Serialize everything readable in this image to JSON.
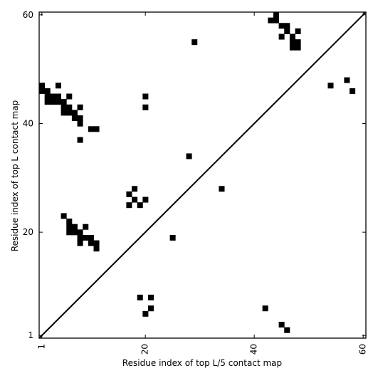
{
  "chart_data": {
    "type": "scatter",
    "title": "",
    "xlabel": "Residue index of top L/5 contact map",
    "ylabel": "Residue index of top L contact map",
    "xlim": [
      0.5,
      60.5
    ],
    "ylim": [
      0.5,
      60.5
    ],
    "x_ticks": [
      {
        "value": 1,
        "label": "1"
      },
      {
        "value": 20,
        "label": "20"
      },
      {
        "value": 40,
        "label": "40"
      },
      {
        "value": 60,
        "label": "60"
      }
    ],
    "y_ticks": [
      {
        "value": 1,
        "label": "1"
      },
      {
        "value": 20,
        "label": "20"
      },
      {
        "value": 40,
        "label": "40"
      },
      {
        "value": 60,
        "label": "60"
      }
    ],
    "grid": false,
    "diagonal_line": true,
    "marker_color": "#000000",
    "points": [
      [
        44,
        60
      ],
      [
        43,
        59
      ],
      [
        44,
        59
      ],
      [
        45,
        58
      ],
      [
        46,
        58
      ],
      [
        46,
        57
      ],
      [
        48,
        57
      ],
      [
        45,
        56
      ],
      [
        47,
        56
      ],
      [
        47,
        55
      ],
      [
        48,
        55
      ],
      [
        47,
        54
      ],
      [
        48,
        54
      ],
      [
        29,
        55
      ],
      [
        1,
        47
      ],
      [
        4,
        47
      ],
      [
        1,
        46
      ],
      [
        2,
        46
      ],
      [
        2,
        45
      ],
      [
        3,
        45
      ],
      [
        4,
        45
      ],
      [
        6,
        45
      ],
      [
        2,
        44
      ],
      [
        3,
        44
      ],
      [
        4,
        44
      ],
      [
        5,
        44
      ],
      [
        5,
        43
      ],
      [
        6,
        43
      ],
      [
        8,
        43
      ],
      [
        5,
        42
      ],
      [
        6,
        42
      ],
      [
        7,
        42
      ],
      [
        7,
        41
      ],
      [
        8,
        41
      ],
      [
        8,
        40
      ],
      [
        10,
        39
      ],
      [
        11,
        39
      ],
      [
        8,
        37
      ],
      [
        20,
        45
      ],
      [
        20,
        43
      ],
      [
        28,
        34
      ],
      [
        34,
        28
      ],
      [
        18,
        28
      ],
      [
        17,
        27
      ],
      [
        18,
        26
      ],
      [
        20,
        26
      ],
      [
        17,
        25
      ],
      [
        19,
        25
      ],
      [
        5,
        23
      ],
      [
        6,
        22
      ],
      [
        6,
        21
      ],
      [
        7,
        21
      ],
      [
        9,
        21
      ],
      [
        6,
        20
      ],
      [
        7,
        20
      ],
      [
        8,
        20
      ],
      [
        8,
        19
      ],
      [
        9,
        19
      ],
      [
        10,
        19
      ],
      [
        8,
        18
      ],
      [
        10,
        18
      ],
      [
        11,
        18
      ],
      [
        11,
        17
      ],
      [
        25,
        19
      ],
      [
        19,
        8
      ],
      [
        21,
        8
      ],
      [
        21,
        6
      ],
      [
        20,
        5
      ],
      [
        42,
        6
      ],
      [
        45,
        3
      ],
      [
        46,
        2
      ],
      [
        54,
        47
      ],
      [
        57,
        48
      ],
      [
        58,
        46
      ]
    ]
  }
}
